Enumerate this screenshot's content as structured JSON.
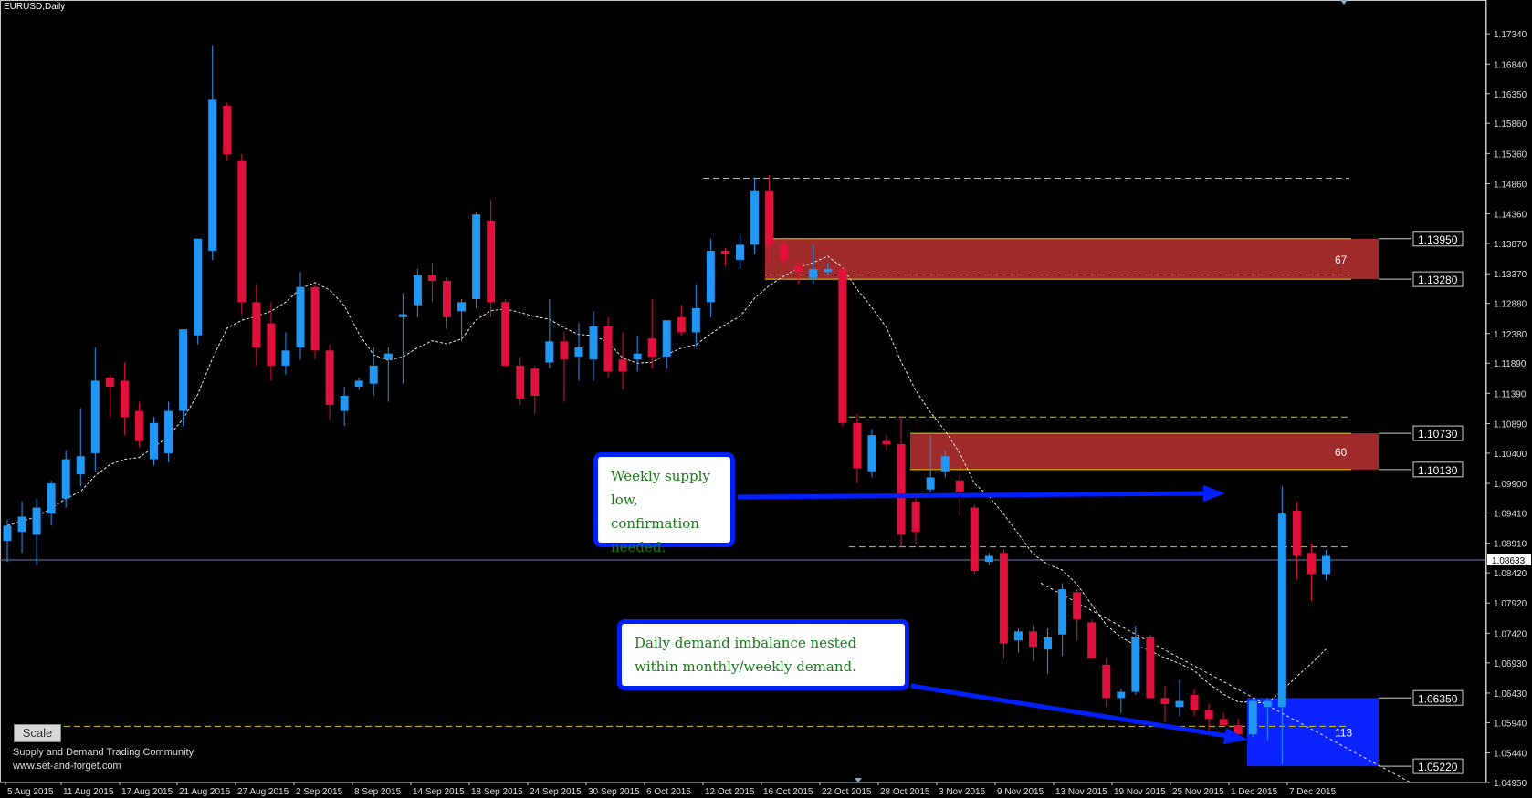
{
  "window": {
    "title": "EURUSD,Daily"
  },
  "colors": {
    "bull": "#2196f3",
    "bear": "#e0123c",
    "supply_zone": "#9e2a2a",
    "demand_zone": "#0b24ff",
    "grid_dash": "#d8c800"
  },
  "controls": {
    "scale_label": "Scale"
  },
  "watermark": {
    "line1": "Supply and Demand Trading Community",
    "line2": "www.set-and-forget.com"
  },
  "notes": {
    "supply": "Weekly supply low, confirmation needed.",
    "demand": "Daily demand imbalance nested within monthly/weekly demand."
  },
  "chart_data": {
    "type": "candlestick",
    "symbol": "EURUSD",
    "timeframe": "Daily",
    "ylim": [
      1.0495,
      1.1775
    ],
    "y_ticks": [
      "1.17340",
      "1.16840",
      "1.16350",
      "1.15860",
      "1.15360",
      "1.14860",
      "1.14360",
      "1.13870",
      "1.13370",
      "1.12880",
      "1.12380",
      "1.11890",
      "1.11390",
      "1.10890",
      "1.10400",
      "1.09900",
      "1.09410",
      "1.08910",
      "1.08420",
      "1.07920",
      "1.07420",
      "1.06930",
      "1.06430",
      "1.05940",
      "1.05440",
      "1.04950"
    ],
    "x_ticks": [
      "5 Aug 2015",
      "11 Aug 2015",
      "17 Aug 2015",
      "21 Aug 2015",
      "27 Aug 2015",
      "2 Sep 2015",
      "8 Sep 2015",
      "14 Sep 2015",
      "18 Sep 2015",
      "24 Sep 2015",
      "30 Sep 2015",
      "6 Oct 2015",
      "12 Oct 2015",
      "16 Oct 2015",
      "22 Oct 2015",
      "28 Oct 2015",
      "3 Nov 2015",
      "9 Nov 2015",
      "13 Nov 2015",
      "19 Nov 2015",
      "25 Nov 2015",
      "1 Dec 2015",
      "7 Dec 2015"
    ],
    "current_price": "1.08633",
    "price_labels": [
      "1.13950",
      "1.13280",
      "1.10730",
      "1.10130",
      "1.06350",
      "1.05220"
    ],
    "zones": [
      {
        "kind": "supply",
        "top": 1.1395,
        "bottom": 1.1328,
        "label": "67"
      },
      {
        "kind": "supply",
        "top": 1.1073,
        "bottom": 1.1013,
        "label": "60"
      },
      {
        "kind": "demand",
        "top": 1.0635,
        "bottom": 1.0522,
        "label": "113"
      }
    ],
    "dashed_levels": [
      1.1495,
      1.1335,
      1.11,
      1.0885,
      1.0588
    ],
    "candles": [
      {
        "o": 1.0895,
        "h": 1.093,
        "l": 1.086,
        "c": 1.092
      },
      {
        "o": 1.091,
        "h": 1.096,
        "l": 1.0875,
        "c": 1.0935
      },
      {
        "o": 1.0905,
        "h": 1.0965,
        "l": 1.0855,
        "c": 1.095
      },
      {
        "o": 1.094,
        "h": 1.0995,
        "l": 1.092,
        "c": 1.099
      },
      {
        "o": 1.0965,
        "h": 1.1045,
        "l": 1.095,
        "c": 1.103
      },
      {
        "o": 1.1005,
        "h": 1.1115,
        "l": 1.0985,
        "c": 1.1035
      },
      {
        "o": 1.104,
        "h": 1.1215,
        "l": 1.101,
        "c": 1.116
      },
      {
        "o": 1.1165,
        "h": 1.117,
        "l": 1.11,
        "c": 1.115
      },
      {
        "o": 1.116,
        "h": 1.119,
        "l": 1.107,
        "c": 1.11
      },
      {
        "o": 1.111,
        "h": 1.1125,
        "l": 1.105,
        "c": 1.106
      },
      {
        "o": 1.103,
        "h": 1.11,
        "l": 1.102,
        "c": 1.109
      },
      {
        "o": 1.104,
        "h": 1.1125,
        "l": 1.1025,
        "c": 1.111
      },
      {
        "o": 1.111,
        "h": 1.1245,
        "l": 1.1085,
        "c": 1.1245
      },
      {
        "o": 1.1235,
        "h": 1.139,
        "l": 1.122,
        "c": 1.1395
      },
      {
        "o": 1.1375,
        "h": 1.1715,
        "l": 1.136,
        "c": 1.1625
      },
      {
        "o": 1.1615,
        "h": 1.162,
        "l": 1.1525,
        "c": 1.1535
      },
      {
        "o": 1.1525,
        "h": 1.1535,
        "l": 1.127,
        "c": 1.129
      },
      {
        "o": 1.129,
        "h": 1.132,
        "l": 1.1185,
        "c": 1.1215
      },
      {
        "o": 1.1255,
        "h": 1.129,
        "l": 1.116,
        "c": 1.1185
      },
      {
        "o": 1.1185,
        "h": 1.124,
        "l": 1.117,
        "c": 1.121
      },
      {
        "o": 1.1215,
        "h": 1.134,
        "l": 1.1195,
        "c": 1.1315
      },
      {
        "o": 1.1315,
        "h": 1.132,
        "l": 1.1195,
        "c": 1.121
      },
      {
        "o": 1.121,
        "h": 1.122,
        "l": 1.1095,
        "c": 1.112
      },
      {
        "o": 1.111,
        "h": 1.115,
        "l": 1.1085,
        "c": 1.1135
      },
      {
        "o": 1.115,
        "h": 1.1165,
        "l": 1.1145,
        "c": 1.116
      },
      {
        "o": 1.1155,
        "h": 1.1215,
        "l": 1.1135,
        "c": 1.1185
      },
      {
        "o": 1.1195,
        "h": 1.1215,
        "l": 1.1125,
        "c": 1.1205
      },
      {
        "o": 1.1265,
        "h": 1.1305,
        "l": 1.1155,
        "c": 1.127
      },
      {
        "o": 1.1285,
        "h": 1.1345,
        "l": 1.1265,
        "c": 1.1335
      },
      {
        "o": 1.1335,
        "h": 1.1355,
        "l": 1.129,
        "c": 1.1325
      },
      {
        "o": 1.1325,
        "h": 1.133,
        "l": 1.1245,
        "c": 1.1265
      },
      {
        "o": 1.1275,
        "h": 1.1295,
        "l": 1.1225,
        "c": 1.129
      },
      {
        "o": 1.1295,
        "h": 1.144,
        "l": 1.128,
        "c": 1.1435
      },
      {
        "o": 1.1425,
        "h": 1.146,
        "l": 1.1265,
        "c": 1.129
      },
      {
        "o": 1.129,
        "h": 1.1295,
        "l": 1.119,
        "c": 1.1185
      },
      {
        "o": 1.1185,
        "h": 1.12,
        "l": 1.112,
        "c": 1.113
      },
      {
        "o": 1.118,
        "h": 1.1185,
        "l": 1.1105,
        "c": 1.1135
      },
      {
        "o": 1.119,
        "h": 1.1295,
        "l": 1.118,
        "c": 1.1225
      },
      {
        "o": 1.1225,
        "h": 1.124,
        "l": 1.1125,
        "c": 1.1195
      },
      {
        "o": 1.12,
        "h": 1.1255,
        "l": 1.116,
        "c": 1.1215
      },
      {
        "o": 1.1195,
        "h": 1.1275,
        "l": 1.116,
        "c": 1.125
      },
      {
        "o": 1.125,
        "h": 1.1265,
        "l": 1.1165,
        "c": 1.1175
      },
      {
        "o": 1.1195,
        "h": 1.124,
        "l": 1.1145,
        "c": 1.1175
      },
      {
        "o": 1.1195,
        "h": 1.1235,
        "l": 1.1175,
        "c": 1.1205
      },
      {
        "o": 1.123,
        "h": 1.1295,
        "l": 1.118,
        "c": 1.12
      },
      {
        "o": 1.12,
        "h": 1.1255,
        "l": 1.118,
        "c": 1.126
      },
      {
        "o": 1.1265,
        "h": 1.1285,
        "l": 1.1235,
        "c": 1.124
      },
      {
        "o": 1.124,
        "h": 1.132,
        "l": 1.1215,
        "c": 1.128
      },
      {
        "o": 1.129,
        "h": 1.1395,
        "l": 1.1265,
        "c": 1.1375
      },
      {
        "o": 1.1375,
        "h": 1.138,
        "l": 1.135,
        "c": 1.137
      },
      {
        "o": 1.136,
        "h": 1.14,
        "l": 1.1345,
        "c": 1.1385
      },
      {
        "o": 1.1385,
        "h": 1.1495,
        "l": 1.137,
        "c": 1.1475
      },
      {
        "o": 1.1475,
        "h": 1.15,
        "l": 1.1355,
        "c": 1.1385
      },
      {
        "o": 1.1385,
        "h": 1.1395,
        "l": 1.135,
        "c": 1.136
      },
      {
        "o": 1.135,
        "h": 1.136,
        "l": 1.132,
        "c": 1.134
      },
      {
        "o": 1.133,
        "h": 1.1385,
        "l": 1.132,
        "c": 1.1345
      },
      {
        "o": 1.134,
        "h": 1.1355,
        "l": 1.1335,
        "c": 1.1345
      },
      {
        "o": 1.1345,
        "h": 1.135,
        "l": 1.1085,
        "c": 1.109
      },
      {
        "o": 1.109,
        "h": 1.1105,
        "l": 1.099,
        "c": 1.1015
      },
      {
        "o": 1.101,
        "h": 1.108,
        "l": 1.1,
        "c": 1.107
      },
      {
        "o": 1.106,
        "h": 1.107,
        "l": 1.1045,
        "c": 1.1055
      },
      {
        "o": 1.1055,
        "h": 1.11,
        "l": 1.0885,
        "c": 1.0905
      },
      {
        "o": 1.096,
        "h": 1.097,
        "l": 1.089,
        "c": 1.091
      },
      {
        "o": 1.098,
        "h": 1.107,
        "l": 1.0975,
        "c": 1.1
      },
      {
        "o": 1.101,
        "h": 1.1045,
        "l": 1.1,
        "c": 1.1035
      },
      {
        "o": 1.0995,
        "h": 1.101,
        "l": 1.0935,
        "c": 1.0975
      },
      {
        "o": 1.095,
        "h": 1.0955,
        "l": 1.084,
        "c": 1.0845
      },
      {
        "o": 1.086,
        "h": 1.0875,
        "l": 1.0855,
        "c": 1.087
      },
      {
        "o": 1.0875,
        "h": 1.088,
        "l": 1.07,
        "c": 1.0725
      },
      {
        "o": 1.073,
        "h": 1.075,
        "l": 1.071,
        "c": 1.0745
      },
      {
        "o": 1.0745,
        "h": 1.0755,
        "l": 1.0695,
        "c": 1.072
      },
      {
        "o": 1.0715,
        "h": 1.075,
        "l": 1.0675,
        "c": 1.0735
      },
      {
        "o": 1.074,
        "h": 1.0825,
        "l": 1.0705,
        "c": 1.0815
      },
      {
        "o": 1.081,
        "h": 1.0815,
        "l": 1.073,
        "c": 1.0765
      },
      {
        "o": 1.076,
        "h": 1.0765,
        "l": 1.07,
        "c": 1.07
      },
      {
        "o": 1.069,
        "h": 1.07,
        "l": 1.062,
        "c": 1.0635
      },
      {
        "o": 1.0635,
        "h": 1.065,
        "l": 1.061,
        "c": 1.0645
      },
      {
        "o": 1.0645,
        "h": 1.0755,
        "l": 1.064,
        "c": 1.0735
      },
      {
        "o": 1.0735,
        "h": 1.074,
        "l": 1.0635,
        "c": 1.0635
      },
      {
        "o": 1.0635,
        "h": 1.0655,
        "l": 1.0595,
        "c": 1.0625
      },
      {
        "o": 1.062,
        "h": 1.0665,
        "l": 1.0605,
        "c": 1.063
      },
      {
        "o": 1.064,
        "h": 1.065,
        "l": 1.0605,
        "c": 1.0615
      },
      {
        "o": 1.0615,
        "h": 1.0625,
        "l": 1.0575,
        "c": 1.06
      },
      {
        "o": 1.06,
        "h": 1.061,
        "l": 1.059,
        "c": 1.059
      },
      {
        "o": 1.059,
        "h": 1.06,
        "l": 1.057,
        "c": 1.0575
      },
      {
        "o": 1.0575,
        "h": 1.0635,
        "l": 1.057,
        "c": 1.063
      },
      {
        "o": 1.062,
        "h": 1.0635,
        "l": 1.0565,
        "c": 1.063
      },
      {
        "o": 1.062,
        "h": 1.0985,
        "l": 1.0525,
        "c": 1.094
      },
      {
        "o": 1.0945,
        "h": 1.096,
        "l": 1.083,
        "c": 1.087
      },
      {
        "o": 1.0875,
        "h": 1.089,
        "l": 1.0795,
        "c": 1.084
      },
      {
        "o": 1.084,
        "h": 1.088,
        "l": 1.083,
        "c": 1.087
      }
    ]
  }
}
